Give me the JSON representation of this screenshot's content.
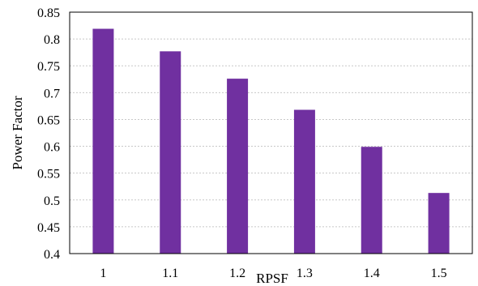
{
  "chart_data": {
    "type": "bar",
    "categories": [
      "1",
      "1.1",
      "1.2",
      "1.3",
      "1.4",
      "1.5"
    ],
    "values": [
      0.819,
      0.777,
      0.726,
      0.668,
      0.599,
      0.513
    ],
    "yticks": [
      "0.4",
      "0.45",
      "0.5",
      "0.55",
      "0.6",
      "0.65",
      "0.7",
      "0.75",
      "0.8",
      "0.85"
    ],
    "xlabel": "RPSF",
    "ylabel": "Power Factor",
    "ylim": [
      0.4,
      0.85
    ],
    "grid": "horizontal-dotted",
    "bar_color": "#7030a0"
  }
}
